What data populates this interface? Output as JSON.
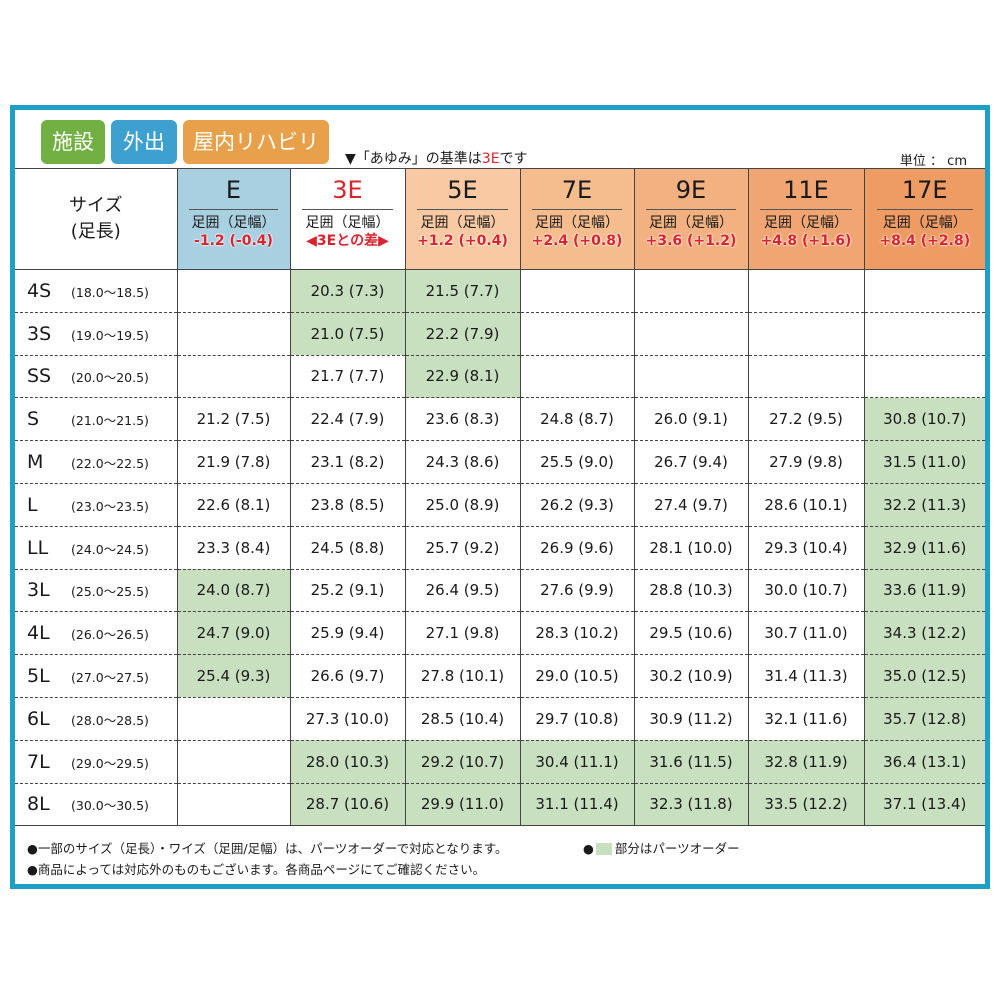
{
  "badges": [
    {
      "label": "施設",
      "color": "#72b043"
    },
    {
      "label": "外出",
      "color": "#3ea0cf"
    },
    {
      "label": "屋内リハビリ",
      "color": "#e8a14a"
    }
  ],
  "note": {
    "prefix": "▼「あゆみ」の基準は",
    "highlight": "3E",
    "suffix": "です"
  },
  "unit": "単位 ： cm",
  "size_header": [
    "サイズ",
    "(足長)"
  ],
  "columns": [
    {
      "name": "E",
      "sub": "足囲（足幅）",
      "diff": "-1.2 (-0.4)",
      "bg": "#a9d0e0",
      "name_color": "#1a1a1a"
    },
    {
      "name": "3E",
      "sub": "足囲（足幅）",
      "diff": "◀3Eとの差▶",
      "bg": "#ffffff",
      "name_color": "#d9232e"
    },
    {
      "name": "5E",
      "sub": "足囲（足幅）",
      "diff": "+1.2 (+0.4)",
      "bg": "#f8c9a2",
      "name_color": "#1a1a1a"
    },
    {
      "name": "7E",
      "sub": "足囲（足幅）",
      "diff": "+2.4 (+0.8)",
      "bg": "#f5bc8e",
      "name_color": "#1a1a1a"
    },
    {
      "name": "9E",
      "sub": "足囲（足幅）",
      "diff": "+3.6 (+1.2)",
      "bg": "#f3b080",
      "name_color": "#1a1a1a"
    },
    {
      "name": "11E",
      "sub": "足囲（足幅）",
      "diff": "+4.8 (+1.6)",
      "bg": "#f0a572",
      "name_color": "#1a1a1a"
    },
    {
      "name": "17E",
      "sub": "足囲（足幅）",
      "diff": "+8.4 (+2.8)",
      "bg": "#ee9b64",
      "name_color": "#1a1a1a"
    }
  ],
  "rows": [
    {
      "size": "4S",
      "range": "(18.0～18.5)",
      "cells": [
        null,
        {
          "v": "20.3 (7.3)",
          "parts": true
        },
        {
          "v": "21.5 (7.7)",
          "parts": true
        },
        null,
        null,
        null,
        null
      ]
    },
    {
      "size": "3S",
      "range": "(19.0～19.5)",
      "cells": [
        null,
        {
          "v": "21.0 (7.5)",
          "parts": true
        },
        {
          "v": "22.2 (7.9)",
          "parts": true
        },
        null,
        null,
        null,
        null
      ]
    },
    {
      "size": "SS",
      "range": "(20.0～20.5)",
      "cells": [
        null,
        {
          "v": "21.7 (7.7)"
        },
        {
          "v": "22.9 (8.1)",
          "parts": true
        },
        null,
        null,
        null,
        null
      ]
    },
    {
      "size": "S",
      "range": "(21.0～21.5)",
      "cells": [
        {
          "v": "21.2 (7.5)"
        },
        {
          "v": "22.4 (7.9)"
        },
        {
          "v": "23.6 (8.3)"
        },
        {
          "v": "24.8 (8.7)"
        },
        {
          "v": "26.0 (9.1)"
        },
        {
          "v": "27.2 (9.5)"
        },
        {
          "v": "30.8 (10.7)",
          "parts": true
        }
      ]
    },
    {
      "size": "M",
      "range": "(22.0～22.5)",
      "cells": [
        {
          "v": "21.9 (7.8)"
        },
        {
          "v": "23.1 (8.2)"
        },
        {
          "v": "24.3 (8.6)"
        },
        {
          "v": "25.5 (9.0)"
        },
        {
          "v": "26.7 (9.4)"
        },
        {
          "v": "27.9 (9.8)"
        },
        {
          "v": "31.5 (11.0)",
          "parts": true
        }
      ]
    },
    {
      "size": "L",
      "range": "(23.0～23.5)",
      "cells": [
        {
          "v": "22.6 (8.1)"
        },
        {
          "v": "23.8 (8.5)"
        },
        {
          "v": "25.0 (8.9)"
        },
        {
          "v": "26.2 (9.3)"
        },
        {
          "v": "27.4 (9.7)"
        },
        {
          "v": "28.6 (10.1)"
        },
        {
          "v": "32.2 (11.3)",
          "parts": true
        }
      ]
    },
    {
      "size": "LL",
      "range": "(24.0～24.5)",
      "cells": [
        {
          "v": "23.3 (8.4)"
        },
        {
          "v": "24.5 (8.8)"
        },
        {
          "v": "25.7 (9.2)"
        },
        {
          "v": "26.9 (9.6)"
        },
        {
          "v": "28.1 (10.0)"
        },
        {
          "v": "29.3 (10.4)"
        },
        {
          "v": "32.9 (11.6)",
          "parts": true
        }
      ]
    },
    {
      "size": "3L",
      "range": "(25.0～25.5)",
      "cells": [
        {
          "v": "24.0 (8.7)",
          "parts": true
        },
        {
          "v": "25.2 (9.1)"
        },
        {
          "v": "26.4 (9.5)"
        },
        {
          "v": "27.6 (9.9)"
        },
        {
          "v": "28.8 (10.3)"
        },
        {
          "v": "30.0 (10.7)"
        },
        {
          "v": "33.6 (11.9)",
          "parts": true
        }
      ]
    },
    {
      "size": "4L",
      "range": "(26.0～26.5)",
      "cells": [
        {
          "v": "24.7 (9.0)",
          "parts": true
        },
        {
          "v": "25.9 (9.4)"
        },
        {
          "v": "27.1 (9.8)"
        },
        {
          "v": "28.3 (10.2)"
        },
        {
          "v": "29.5 (10.6)"
        },
        {
          "v": "30.7 (11.0)"
        },
        {
          "v": "34.3 (12.2)",
          "parts": true
        }
      ]
    },
    {
      "size": "5L",
      "range": "(27.0～27.5)",
      "cells": [
        {
          "v": "25.4 (9.3)",
          "parts": true
        },
        {
          "v": "26.6 (9.7)"
        },
        {
          "v": "27.8 (10.1)"
        },
        {
          "v": "29.0 (10.5)"
        },
        {
          "v": "30.2 (10.9)"
        },
        {
          "v": "31.4 (11.3)"
        },
        {
          "v": "35.0 (12.5)",
          "parts": true
        }
      ]
    },
    {
      "size": "6L",
      "range": "(28.0～28.5)",
      "cells": [
        null,
        {
          "v": "27.3 (10.0)"
        },
        {
          "v": "28.5 (10.4)"
        },
        {
          "v": "29.7 (10.8)"
        },
        {
          "v": "30.9 (11.2)"
        },
        {
          "v": "32.1 (11.6)"
        },
        {
          "v": "35.7 (12.8)",
          "parts": true
        }
      ]
    },
    {
      "size": "7L",
      "range": "(29.0～29.5)",
      "cells": [
        null,
        {
          "v": "28.0 (10.3)",
          "parts": true
        },
        {
          "v": "29.2 (10.7)",
          "parts": true
        },
        {
          "v": "30.4 (11.1)",
          "parts": true
        },
        {
          "v": "31.6 (11.5)",
          "parts": true
        },
        {
          "v": "32.8 (11.9)",
          "parts": true
        },
        {
          "v": "36.4 (13.1)",
          "parts": true
        }
      ]
    },
    {
      "size": "8L",
      "range": "(30.0～30.5)",
      "cells": [
        null,
        {
          "v": "28.7 (10.6)",
          "parts": true
        },
        {
          "v": "29.9 (11.0)",
          "parts": true
        },
        {
          "v": "31.1 (11.4)",
          "parts": true
        },
        {
          "v": "32.3 (11.8)",
          "parts": true
        },
        {
          "v": "33.5 (12.2)",
          "parts": true
        },
        {
          "v": "37.1 (13.4)",
          "parts": true
        }
      ]
    }
  ],
  "footnotes": [
    "●一部のサイズ（足長）・ワイズ（足囲/足幅）は、パーツオーダーで対応となります。",
    "●商品によっては対応外のものもございます。各商品ページにてご確認ください。"
  ],
  "legend": {
    "bullet": "●",
    "text": "部分はパーツオーダー",
    "color": "#c8dfc0"
  }
}
